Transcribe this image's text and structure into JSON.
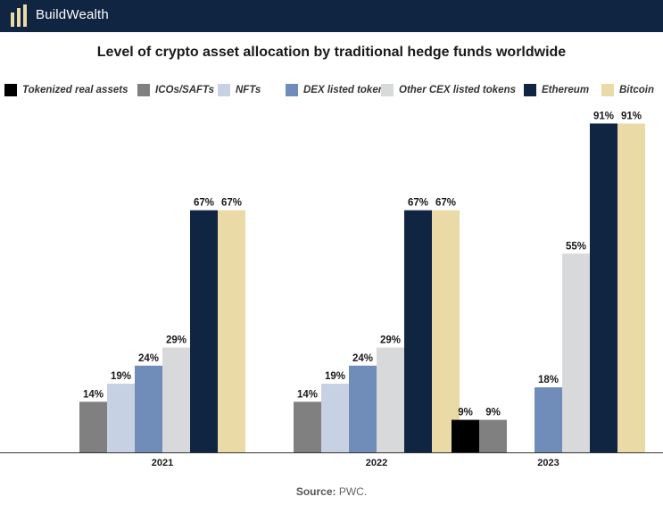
{
  "header": {
    "brand": "BuildWealth"
  },
  "source": {
    "label": "Source:",
    "text": "PWC."
  },
  "colors": {
    "header_bg": "#0f2542",
    "series": [
      "#000000",
      "#808080",
      "#c7d1e4",
      "#6f8db8",
      "#d8d9db",
      "#0f2542",
      "#eadba6"
    ]
  },
  "chart_data": {
    "type": "bar",
    "title": "Level of crypto asset allocation by traditional hedge funds worldwide",
    "xlabel": "",
    "ylabel": "",
    "ylim": [
      0,
      100
    ],
    "grid": false,
    "legend_position": "top",
    "categories": [
      "2021",
      "2022",
      "2023"
    ],
    "series": [
      {
        "name": "Tokenized real assets",
        "values": [
          null,
          null,
          9
        ]
      },
      {
        "name": "ICOs/SAFTs",
        "values": [
          14,
          14,
          9
        ]
      },
      {
        "name": "NFTs",
        "values": [
          19,
          19,
          null
        ]
      },
      {
        "name": "DEX listed tokens",
        "values": [
          24,
          24,
          18
        ]
      },
      {
        "name": "Other CEX listed tokens",
        "values": [
          29,
          29,
          55
        ]
      },
      {
        "name": "Ethereum",
        "values": [
          67,
          67,
          91
        ]
      },
      {
        "name": "Bitcoin",
        "values": [
          67,
          67,
          91
        ]
      }
    ]
  }
}
